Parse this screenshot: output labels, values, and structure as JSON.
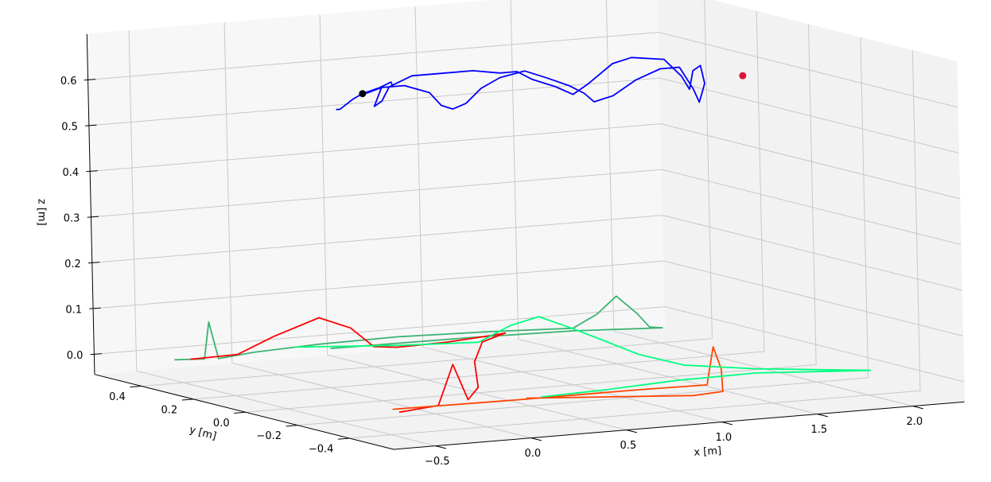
{
  "chart_data": {
    "type": "line3d",
    "xlabel": "x [m]",
    "ylabel": "y [m]",
    "zlabel": "z [m]",
    "xlim": [
      -0.72,
      2.27
    ],
    "ylim": [
      -0.57,
      0.58
    ],
    "zlim": [
      -0.044,
      0.7
    ],
    "xticks": [
      {
        "value": -0.5,
        "label": "−0.5"
      },
      {
        "value": 0,
        "label": "0.0"
      },
      0.5,
      {
        "value": 1,
        "label": "1.0"
      },
      1.5,
      {
        "value": 2,
        "label": "2.0"
      }
    ],
    "yticks": [
      {
        "value": -0.4,
        "label": "−0.4"
      },
      {
        "value": -0.2,
        "label": "−0.2"
      },
      {
        "value": 0,
        "label": "0.0"
      },
      0.2,
      0.4
    ],
    "zticks": [
      {
        "value": 0,
        "label": "0.0"
      },
      0.1,
      0.2,
      0.3,
      0.4,
      0.5,
      0.6
    ],
    "grid": true,
    "series": [
      {
        "color": "#0000ff",
        "x": [
          -0.21,
          -0.19,
          -0.12,
          -0.07,
          0.02,
          0.08,
          0.09,
          0.03,
          -0.01,
          0.03,
          0.07,
          0.19,
          0.34,
          0.51,
          0.65,
          0.74,
          0.82,
          0.94,
          1.03,
          1.11,
          1.24,
          1.34,
          1.51,
          1.6,
          1.64,
          1.66,
          1.7,
          1.72,
          1.69,
          1.66,
          1.59,
          1.49,
          1.36,
          1.24,
          1.14,
          1.09,
          1.01,
          0.9,
          0.78,
          0.65,
          0.55,
          0.47,
          0.4,
          0.34,
          0.28,
          0.15,
          0.03,
          -0.05
        ],
        "y": [
          0,
          0,
          0,
          0,
          0,
          0,
          0,
          0,
          0,
          0,
          0,
          0,
          0,
          0,
          0,
          0,
          0,
          0,
          0,
          0,
          0,
          0,
          0,
          0,
          0,
          0,
          0,
          0,
          0,
          0,
          0,
          0,
          0,
          0,
          0,
          0,
          0,
          0,
          0,
          0,
          0,
          0,
          0,
          0,
          0,
          0,
          0,
          0
        ],
        "z": [
          0.6,
          0.6,
          0.62,
          0.63,
          0.64,
          0.65,
          0.64,
          0.64,
          0.6,
          0.61,
          0.64,
          0.66,
          0.66,
          0.66,
          0.65,
          0.65,
          0.63,
          0.61,
          0.59,
          0.61,
          0.65,
          0.66,
          0.65,
          0.61,
          0.58,
          0.62,
          0.63,
          0.59,
          0.55,
          0.58,
          0.63,
          0.63,
          0.61,
          0.58,
          0.57,
          0.59,
          0.61,
          0.63,
          0.65,
          0.64,
          0.62,
          0.59,
          0.58,
          0.59,
          0.62,
          0.64,
          0.64,
          0.63
        ]
      },
      {
        "color": "#3cb371",
        "x": [
          -0.49,
          -0.36,
          -0.32,
          -0.3,
          -0.06,
          0.32,
          0.75,
          1.2,
          1.57,
          1.67,
          1.76,
          1.84,
          1.89,
          1.93,
          1.53,
          1.05,
          0.3
        ],
        "y": [
          0.44,
          0.42,
          0.43,
          0.41,
          0.45,
          0.48,
          0.49,
          0.46,
          0.42,
          0.4,
          0.39,
          0.37,
          0.36,
          0.34,
          0.39,
          0.41,
          0.42
        ],
        "z": [
          0,
          0,
          0.078,
          0,
          0,
          0,
          0,
          0,
          0,
          0.03,
          0.068,
          0.03,
          0,
          0,
          0,
          0,
          0
        ]
      },
      {
        "color": "#ff0000",
        "x": [
          -0.42,
          -0.16,
          0.02,
          0.23,
          0.38,
          0.5,
          0.58,
          0.85,
          1.1,
          1.23,
          1.0,
          0.66,
          0.27,
          0.04,
          -0.09,
          -0.17,
          -0.43
        ],
        "y": [
          0.43,
          0.44,
          0.43,
          0.41,
          0.4,
          0.4,
          0.37,
          0.38,
          0.41,
          0.43,
          0.35,
          0.13,
          -0.17,
          -0.3,
          -0.34,
          -0.34,
          -0.38
        ],
        "z": [
          0,
          0,
          0.035,
          0.071,
          0.045,
          0,
          0,
          0,
          0,
          0,
          0,
          0,
          0,
          0,
          0.087,
          0,
          0
        ]
      },
      {
        "color": "#ff4500",
        "x": [
          -0.41,
          0.22,
          0.86,
          1.21,
          1.26,
          1.3,
          1.17,
          0.99,
          0.29
        ],
        "y": [
          -0.34,
          -0.35,
          -0.35,
          -0.36,
          -0.35,
          -0.35,
          -0.45,
          -0.47,
          -0.34
        ],
        "z": [
          0,
          0,
          0,
          0,
          0.08,
          0.03,
          0,
          0,
          0
        ]
      },
      {
        "color": "#00ff7f",
        "x": [
          0.18,
          0.62,
          0.98,
          1.08,
          1.19,
          1.28,
          1.5,
          1.42,
          1.43,
          1.65,
          2.08,
          1.59,
          1.16,
          0.73,
          0.37
        ],
        "y": [
          0.47,
          0.39,
          0.35,
          0.3,
          0.27,
          0.21,
          0.25,
          0.06,
          -0.11,
          -0.22,
          -0.35,
          -0.27,
          -0.28,
          -0.32,
          -0.34
        ],
        "z": [
          0,
          0,
          0,
          0.04,
          0.06,
          0.04,
          0,
          0,
          0,
          0,
          0,
          0,
          0,
          0,
          0
        ]
      }
    ],
    "points": [
      {
        "color": "#000000",
        "x": -0.07,
        "y": 0,
        "z": 0.63
      },
      {
        "color": "#dc143c",
        "x": 1.92,
        "y": 0,
        "z": 0.6
      }
    ]
  }
}
